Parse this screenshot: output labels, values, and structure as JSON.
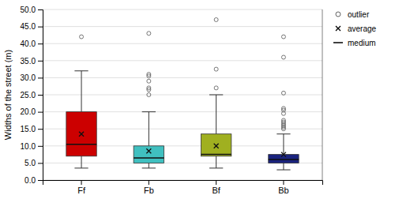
{
  "chart_data": {
    "type": "box",
    "categories": [
      "Ff",
      "Fb",
      "Bf",
      "Bb"
    ],
    "colors": [
      "#cc0000",
      "#40c0c0",
      "#a0b020",
      "#1a237e"
    ],
    "boxes": [
      {
        "q1": 7.0,
        "median": 10.5,
        "q3": 20.0,
        "whislo": 3.5,
        "whishi": 32.0,
        "mean": 13.5,
        "outliers": [
          42.0
        ]
      },
      {
        "q1": 5.0,
        "median": 6.5,
        "q3": 10.0,
        "whislo": 3.5,
        "whishi": 20.0,
        "mean": 8.5,
        "outliers": [
          25.0,
          26.5,
          27.0,
          29.0,
          30.5,
          31.0,
          43.0
        ]
      },
      {
        "q1": 7.0,
        "median": 7.5,
        "q3": 13.5,
        "whislo": 3.5,
        "whishi": 25.0,
        "mean": 10.0,
        "outliers": [
          27.0,
          32.5,
          47.0
        ]
      },
      {
        "q1": 5.0,
        "median": 6.0,
        "q3": 7.5,
        "whislo": 3.0,
        "whishi": 13.5,
        "mean": 7.5,
        "outliers": [
          15.0,
          15.5,
          16.0,
          16.5,
          17.0,
          17.5,
          19.5,
          20.5,
          21.0,
          25.5,
          36.0,
          42.0
        ]
      }
    ],
    "y_label": "Widths of the street (m)",
    "ylim": [
      0.0,
      50.0
    ],
    "yticks": [
      {
        "value": 0.0,
        "label": "0.0"
      },
      {
        "value": 5.0,
        "label": "5.0"
      },
      {
        "value": 10.0,
        "label": "10.0"
      },
      {
        "value": 15.0,
        "label": "15.0"
      },
      {
        "value": 20.0,
        "label": "20.0"
      },
      {
        "value": 25.0,
        "label": "25.0"
      },
      {
        "value": 30.0,
        "label": "30.0"
      },
      {
        "value": 35.0,
        "label": "35.0"
      },
      {
        "value": 40.0,
        "label": "40.0"
      },
      {
        "value": 45.0,
        "label": "45.0"
      },
      {
        "value": 50.0,
        "label": "50.0"
      }
    ],
    "grid": true,
    "legend": "right",
    "legend_entries": [
      "outlier",
      "average",
      "medium"
    ]
  }
}
